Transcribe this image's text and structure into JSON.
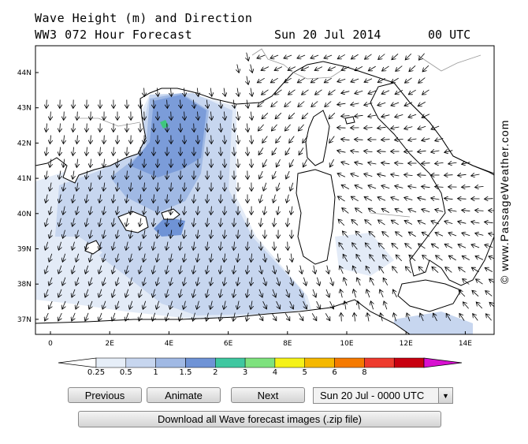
{
  "header": {
    "title_line1": "Wave Height (m) and Direction",
    "title_line2": "WW3 072 Hour Forecast",
    "date": "Sun 20 Jul 2014",
    "time": "00 UTC"
  },
  "map": {
    "lat_labels": [
      "44N",
      "43N",
      "42N",
      "41N",
      "40N",
      "39N",
      "38N",
      "37N"
    ],
    "lon_labels": [
      "0",
      "2E",
      "4E",
      "6E",
      "8E",
      "10E",
      "12E",
      "14E"
    ],
    "watermark": "© www.PassageWeather.com"
  },
  "colorbar": {
    "ticks": [
      "0.25",
      "0.5",
      "1",
      "1.5",
      "2",
      "3",
      "4",
      "5",
      "6",
      "8"
    ],
    "colors": [
      "#ffffff",
      "#e6eef8",
      "#c7d6ef",
      "#a0b9e4",
      "#6f93d6",
      "#3fc7a0",
      "#7ee27e",
      "#f5f218",
      "#f5b800",
      "#f57a00",
      "#ee3b2e",
      "#c80010",
      "#d810d0"
    ]
  },
  "controls": {
    "previous": "Previous",
    "animate": "Animate",
    "next": "Next",
    "time_select": "Sun 20 Jul - 0000 UTC",
    "download": "Download all Wave forecast images (.zip file)"
  }
}
